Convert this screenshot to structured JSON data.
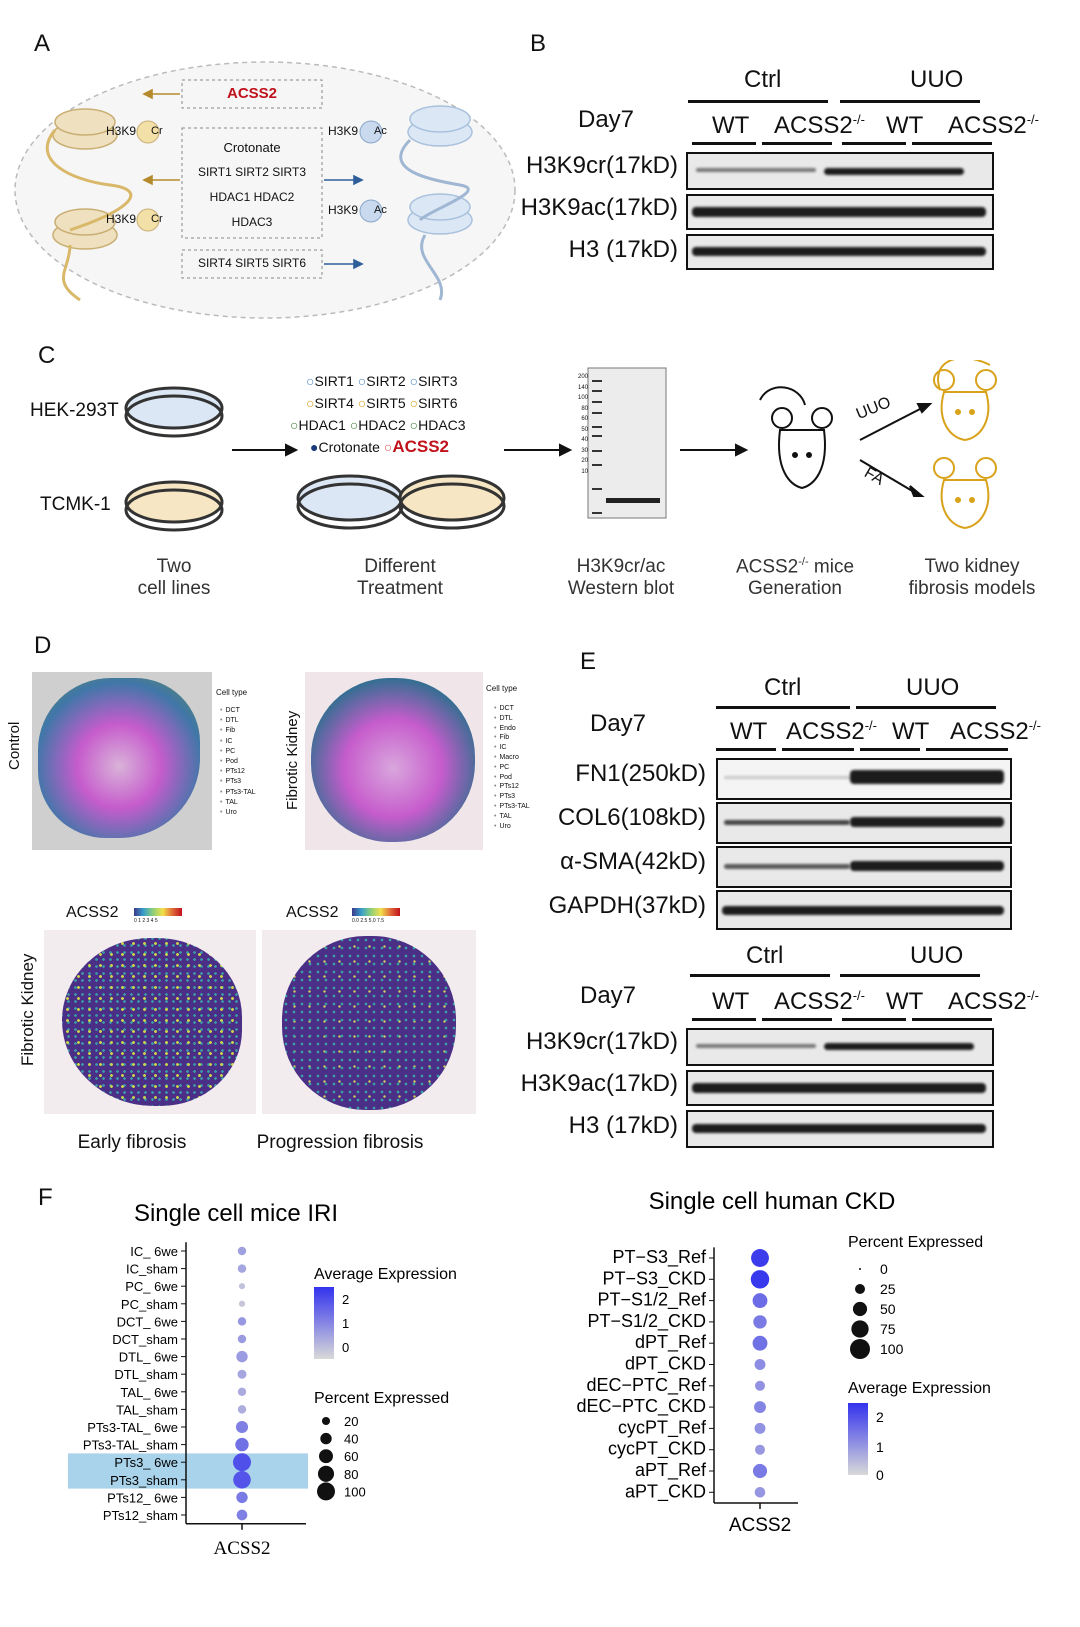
{
  "panel_labels": {
    "A": "A",
    "B": "B",
    "C": "C",
    "D": "D",
    "E": "E",
    "F": "F"
  },
  "panelA": {
    "acss2": "ACSS2",
    "crotonate": "Crotonate",
    "sirt_row1": "SIRT1   SIRT2   SIRT3",
    "hdac_row1": "HDAC1  HDAC2",
    "hdac_row2": "HDAC3",
    "sirt_row2": "SIRT4   SIRT5   SIRT6",
    "h3k9": "H3K9",
    "cr": "Cr",
    "ac": "Ac"
  },
  "blotB": {
    "group_ctrl": "Ctrl",
    "group_uuo": "UUO",
    "day": "Day7",
    "wt": "WT",
    "ko": "ACSS2",
    "ko_sup": "-/-",
    "rows": [
      "H3K9cr(17kD)",
      "H3K9ac(17kD)",
      "H3 (17kD)"
    ]
  },
  "panelC": {
    "hek": "HEK-293T",
    "tcmk": "TCMK-1",
    "treatments": [
      "SIRT1",
      "SIRT2",
      "SIRT3",
      "SIRT4",
      "SIRT5",
      "SIRT6",
      "HDAC1",
      "HDAC2",
      "HDAC3"
    ],
    "crotonate": "Crotonate",
    "acss2": "ACSS2",
    "ladder": [
      "200",
      "140",
      "100",
      "80",
      "60",
      "50",
      "40",
      "30",
      "20",
      "10"
    ],
    "uuo": "UUO",
    "fa": "FA",
    "cap1a": "Two",
    "cap1b": "cell lines",
    "cap2a": "Different",
    "cap2b": "Treatment",
    "cap3a": "H3K9cr/ac",
    "cap3b": "Western blot",
    "cap4a": "ACSS2",
    "cap4sup": "-/-",
    "cap4a2": " mice",
    "cap4b": "Generation",
    "cap5a": "Two kidney",
    "cap5b": "fibrosis models"
  },
  "panelD": {
    "control": "Control",
    "fibrotic": "Fibrotic Kidney",
    "celltype": "Cell type",
    "legend1": [
      "DCT",
      "DTL",
      "Fib",
      "IC",
      "PC",
      "Pod",
      "PTs12",
      "PTs3",
      "PTs3-TAL",
      "TAL",
      "Uro"
    ],
    "legend2": [
      "DCT",
      "DTL",
      "Endo",
      "Fib",
      "IC",
      "Macro",
      "PC",
      "Pod",
      "PTs12",
      "PTs3",
      "PTs3-TAL",
      "TAL",
      "Uro"
    ],
    "acss2": "ACSS2",
    "fibrotic_left": "Fibrotic Kidney",
    "early": "Early fibrosis",
    "progression": "Progression fibrosis",
    "scale1": "0  1  2  3  4  5",
    "scale2": "0.0  2.5  5.0  7.5"
  },
  "blotE1": {
    "group_ctrl": "Ctrl",
    "group_uuo": "UUO",
    "day": "Day7",
    "wt": "WT",
    "ko": "ACSS2",
    "ko_sup": "-/-",
    "rows": [
      "FN1(250kD)",
      "COL6(108kD)",
      "α-SMA(42kD)",
      "GAPDH(37kD)"
    ]
  },
  "blotE2": {
    "group_ctrl": "Ctrl",
    "group_uuo": "UUO",
    "day": "Day7",
    "wt": "WT",
    "ko": "ACSS2",
    "ko_sup": "-/-",
    "rows": [
      "H3K9cr(17kD)",
      "H3K9ac(17kD)",
      "H3 (17kD)"
    ]
  },
  "chart_data": [
    {
      "type": "scatter",
      "title": "Single cell mice IRI",
      "xlabel": "ACSS2",
      "categories": [
        "IC_ 6we",
        "IC_sham",
        "PC_ 6we",
        "PC_sham",
        "DCT_ 6we",
        "DCT_sham",
        "DTL_ 6we",
        "DTL_sham",
        "TAL_ 6we",
        "TAL_sham",
        "PTs3-TAL_ 6we",
        "PTs3-TAL_sham",
        "PTs3_ 6we",
        "PTs3_sham",
        "PTs12_ 6we",
        "PTs12_sham"
      ],
      "avg_expression": [
        0.2,
        0.1,
        -0.5,
        -0.6,
        0.4,
        0.3,
        0.3,
        0.1,
        0.0,
        -0.1,
        0.9,
        1.2,
        1.9,
        1.8,
        1.0,
        0.9
      ],
      "percent_expressed": [
        22,
        22,
        12,
        12,
        22,
        22,
        40,
        25,
        22,
        22,
        45,
        55,
        100,
        95,
        40,
        35
      ],
      "highlighted": [
        "PTs3_ 6we",
        "PTs3_sham"
      ],
      "legend_avg_title": "Average Expression",
      "legend_avg_ticks": [
        "2",
        "1",
        "0"
      ],
      "legend_pct_title": "Percent Expressed",
      "legend_pct_ticks": [
        "20",
        "40",
        "60",
        "80",
        "100"
      ],
      "colors": {
        "low": "#d9d9d9",
        "high": "#3333ee",
        "highlight": "#a9d3ea"
      }
    },
    {
      "type": "scatter",
      "title": "Single cell human CKD",
      "xlabel": "ACSS2",
      "categories": [
        "PT−S3_Ref",
        "PT−S3_CKD",
        "PT−S1/2_Ref",
        "PT−S1/2_CKD",
        "dPT_Ref",
        "dPT_CKD",
        "dEC−PTC_Ref",
        "dEC−PTC_CKD",
        "cycPT_Ref",
        "cycPT_CKD",
        "aPT_Ref",
        "aPT_CKD"
      ],
      "avg_expression": [
        2.3,
        2.4,
        1.3,
        1.0,
        1.2,
        0.6,
        0.5,
        0.8,
        0.5,
        0.4,
        1.0,
        0.4
      ],
      "percent_expressed": [
        80,
        85,
        55,
        45,
        55,
        30,
        25,
        35,
        30,
        25,
        50,
        28
      ],
      "legend_pct_title": "Percent Expressed",
      "legend_pct_ticks": [
        "0",
        "25",
        "50",
        "75",
        "100"
      ],
      "legend_avg_title": "Average Expression",
      "legend_avg_ticks": [
        "2",
        "1",
        "0"
      ],
      "colors": {
        "low": "#d9d9d9",
        "high": "#3333ee"
      }
    }
  ]
}
